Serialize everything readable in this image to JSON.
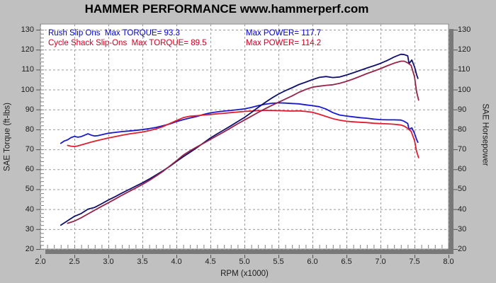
{
  "title": "HAMMER PERFORMANCE www.hammerperf.com",
  "legend": {
    "rows": [
      {
        "series": "Rush Slip Ons",
        "torque_text": "Rush Slip Ons  Max TORQUE= 93.3",
        "power_text": "Max POWER= 117.7",
        "color": "#0000cc"
      },
      {
        "series": "Cycle Shack Slip-Ons",
        "torque_text": "Cycle Shack Slip-Ons  Max TORQUE= 89.5",
        "power_text": "Max POWER= 114.2",
        "color": "#cc0022"
      }
    ]
  },
  "axes": {
    "left_label": "SAE Torque (ft-lbs)",
    "right_label": "SAE Horsepower",
    "bottom_label": "RPM (x1000)"
  },
  "chart_data": {
    "type": "line",
    "title": "HAMMER PERFORMANCE www.hammerperf.com",
    "xlabel": "RPM (x1000)",
    "ylabel": "SAE Torque (ft-lbs)",
    "ylabel_right": "SAE Horsepower",
    "xlim": [
      2.0,
      8.0
    ],
    "ylim": [
      20,
      130
    ],
    "x_ticks": [
      2.0,
      2.5,
      3.0,
      3.5,
      4.0,
      4.5,
      5.0,
      5.5,
      6.0,
      6.5,
      7.0,
      7.5,
      8.0
    ],
    "y_ticks": [
      20,
      30,
      40,
      50,
      60,
      70,
      80,
      90,
      100,
      110,
      120,
      130
    ],
    "x_minor_step": 0.1,
    "y_minor_step": 2,
    "grid": "dashed",
    "grid_color": "#9a9a9a",
    "legend_position": "top-left-inside",
    "series": [
      {
        "name": "Rush Slip Ons Torque (ft-lbs)",
        "max_label": "Max TORQUE= 93.3",
        "max_value": 93.3,
        "color": "#1a1acc",
        "points": [
          [
            2.3,
            73.0
          ],
          [
            2.35,
            74.2
          ],
          [
            2.4,
            74.8
          ],
          [
            2.45,
            75.9
          ],
          [
            2.5,
            76.5
          ],
          [
            2.55,
            76.1
          ],
          [
            2.6,
            76.4
          ],
          [
            2.65,
            77.1
          ],
          [
            2.7,
            77.8
          ],
          [
            2.75,
            77.1
          ],
          [
            2.8,
            76.7
          ],
          [
            2.85,
            76.9
          ],
          [
            2.9,
            77.3
          ],
          [
            2.95,
            77.7
          ],
          [
            3.0,
            78.1
          ],
          [
            3.1,
            78.5
          ],
          [
            3.2,
            78.9
          ],
          [
            3.3,
            79.2
          ],
          [
            3.4,
            79.5
          ],
          [
            3.5,
            79.9
          ],
          [
            3.6,
            80.4
          ],
          [
            3.7,
            81.0
          ],
          [
            3.8,
            81.8
          ],
          [
            3.9,
            82.7
          ],
          [
            4.0,
            83.9
          ],
          [
            4.1,
            84.9
          ],
          [
            4.2,
            85.7
          ],
          [
            4.3,
            86.5
          ],
          [
            4.4,
            87.5
          ],
          [
            4.5,
            88.3
          ],
          [
            4.6,
            88.8
          ],
          [
            4.7,
            89.2
          ],
          [
            4.8,
            89.5
          ],
          [
            4.9,
            89.9
          ],
          [
            5.0,
            90.3
          ],
          [
            5.1,
            91.0
          ],
          [
            5.2,
            91.9
          ],
          [
            5.3,
            92.6
          ],
          [
            5.4,
            93.1
          ],
          [
            5.5,
            93.3
          ],
          [
            5.6,
            93.2
          ],
          [
            5.7,
            93.0
          ],
          [
            5.8,
            92.8
          ],
          [
            5.9,
            92.3
          ],
          [
            6.0,
            91.9
          ],
          [
            6.1,
            91.4
          ],
          [
            6.2,
            90.2
          ],
          [
            6.3,
            88.4
          ],
          [
            6.4,
            87.2
          ],
          [
            6.5,
            86.7
          ],
          [
            6.6,
            86.3
          ],
          [
            6.7,
            85.9
          ],
          [
            6.8,
            85.6
          ],
          [
            6.9,
            85.2
          ],
          [
            7.0,
            84.9
          ],
          [
            7.1,
            84.8
          ],
          [
            7.2,
            84.8
          ],
          [
            7.3,
            84.7
          ],
          [
            7.35,
            84.0
          ],
          [
            7.4,
            83.0
          ],
          [
            7.42,
            80.0
          ],
          [
            7.46,
            80.8
          ],
          [
            7.5,
            78.0
          ],
          [
            7.53,
            75.0
          ],
          [
            7.55,
            73.5
          ]
        ]
      },
      {
        "name": "Cycle Shack Slip-Ons Torque (ft-lbs)",
        "max_label": "Max TORQUE= 89.5",
        "max_value": 89.5,
        "color": "#dd1f30",
        "points": [
          [
            2.4,
            72.0
          ],
          [
            2.45,
            71.6
          ],
          [
            2.5,
            71.4
          ],
          [
            2.55,
            71.7
          ],
          [
            2.6,
            72.2
          ],
          [
            2.7,
            73.2
          ],
          [
            2.8,
            74.1
          ],
          [
            2.9,
            74.9
          ],
          [
            3.0,
            75.7
          ],
          [
            3.1,
            76.4
          ],
          [
            3.2,
            77.1
          ],
          [
            3.3,
            77.7
          ],
          [
            3.4,
            78.2
          ],
          [
            3.5,
            78.7
          ],
          [
            3.6,
            79.4
          ],
          [
            3.7,
            80.3
          ],
          [
            3.8,
            81.4
          ],
          [
            3.9,
            82.9
          ],
          [
            4.0,
            84.4
          ],
          [
            4.1,
            85.9
          ],
          [
            4.2,
            86.6
          ],
          [
            4.3,
            86.9
          ],
          [
            4.4,
            87.2
          ],
          [
            4.5,
            87.5
          ],
          [
            4.6,
            87.8
          ],
          [
            4.7,
            88.1
          ],
          [
            4.8,
            88.4
          ],
          [
            4.9,
            88.7
          ],
          [
            5.0,
            89.0
          ],
          [
            5.1,
            89.2
          ],
          [
            5.2,
            89.4
          ],
          [
            5.3,
            89.5
          ],
          [
            5.4,
            89.5
          ],
          [
            5.5,
            89.4
          ],
          [
            5.6,
            89.3
          ],
          [
            5.7,
            89.2
          ],
          [
            5.8,
            89.3
          ],
          [
            5.9,
            89.0
          ],
          [
            6.0,
            88.6
          ],
          [
            6.1,
            87.6
          ],
          [
            6.2,
            86.5
          ],
          [
            6.3,
            85.4
          ],
          [
            6.4,
            84.6
          ],
          [
            6.5,
            84.1
          ],
          [
            6.6,
            83.8
          ],
          [
            6.7,
            83.6
          ],
          [
            6.8,
            83.4
          ],
          [
            6.9,
            83.1
          ],
          [
            7.0,
            82.9
          ],
          [
            7.1,
            82.8
          ],
          [
            7.2,
            82.6
          ],
          [
            7.3,
            82.2
          ],
          [
            7.35,
            81.6
          ],
          [
            7.4,
            80.5
          ],
          [
            7.45,
            79.0
          ],
          [
            7.5,
            74.5
          ],
          [
            7.53,
            69.0
          ],
          [
            7.56,
            65.8
          ]
        ]
      },
      {
        "name": "Rush Slip Ons Power (hp)",
        "max_label": "Max POWER= 117.7",
        "max_value": 117.7,
        "color": "#10106e",
        "points": [
          [
            2.3,
            32.0
          ],
          [
            2.4,
            34.2
          ],
          [
            2.5,
            36.4
          ],
          [
            2.6,
            37.8
          ],
          [
            2.7,
            40.0
          ],
          [
            2.8,
            40.9
          ],
          [
            2.9,
            42.7
          ],
          [
            3.0,
            44.6
          ],
          [
            3.1,
            46.3
          ],
          [
            3.2,
            48.1
          ],
          [
            3.3,
            49.8
          ],
          [
            3.4,
            51.5
          ],
          [
            3.5,
            53.2
          ],
          [
            3.6,
            55.1
          ],
          [
            3.7,
            57.1
          ],
          [
            3.8,
            59.2
          ],
          [
            3.9,
            61.4
          ],
          [
            4.0,
            63.9
          ],
          [
            4.1,
            66.3
          ],
          [
            4.2,
            68.5
          ],
          [
            4.3,
            70.8
          ],
          [
            4.4,
            73.3
          ],
          [
            4.5,
            75.7
          ],
          [
            4.6,
            77.8
          ],
          [
            4.7,
            79.8
          ],
          [
            4.8,
            81.8
          ],
          [
            4.9,
            83.9
          ],
          [
            5.0,
            86.0
          ],
          [
            5.1,
            88.4
          ],
          [
            5.2,
            91.0
          ],
          [
            5.3,
            93.4
          ],
          [
            5.4,
            95.7
          ],
          [
            5.5,
            97.7
          ],
          [
            5.6,
            99.4
          ],
          [
            5.7,
            100.9
          ],
          [
            5.8,
            102.5
          ],
          [
            5.9,
            103.7
          ],
          [
            6.0,
            105.0
          ],
          [
            6.1,
            106.1
          ],
          [
            6.2,
            106.5
          ],
          [
            6.3,
            106.0
          ],
          [
            6.4,
            106.3
          ],
          [
            6.5,
            107.3
          ],
          [
            6.6,
            108.4
          ],
          [
            6.7,
            109.6
          ],
          [
            6.8,
            110.8
          ],
          [
            6.9,
            111.9
          ],
          [
            7.0,
            113.1
          ],
          [
            7.1,
            114.6
          ],
          [
            7.2,
            116.3
          ],
          [
            7.3,
            117.7
          ],
          [
            7.35,
            117.5
          ],
          [
            7.4,
            116.9
          ],
          [
            7.42,
            113.0
          ],
          [
            7.46,
            114.8
          ],
          [
            7.5,
            111.4
          ],
          [
            7.53,
            107.5
          ],
          [
            7.55,
            105.6
          ]
        ]
      },
      {
        "name": "Cycle Shack Slip-Ons Power (hp)",
        "max_label": "Max POWER= 114.2",
        "max_value": 114.2,
        "color": "#96234a",
        "points": [
          [
            2.4,
            32.9
          ],
          [
            2.5,
            34.0
          ],
          [
            2.6,
            35.7
          ],
          [
            2.7,
            37.6
          ],
          [
            2.8,
            39.5
          ],
          [
            2.9,
            41.4
          ],
          [
            3.0,
            43.2
          ],
          [
            3.1,
            45.1
          ],
          [
            3.2,
            47.0
          ],
          [
            3.3,
            48.8
          ],
          [
            3.4,
            50.6
          ],
          [
            3.5,
            52.4
          ],
          [
            3.6,
            54.4
          ],
          [
            3.7,
            56.6
          ],
          [
            3.8,
            58.9
          ],
          [
            3.9,
            61.6
          ],
          [
            4.0,
            64.3
          ],
          [
            4.1,
            67.1
          ],
          [
            4.2,
            69.3
          ],
          [
            4.3,
            71.2
          ],
          [
            4.4,
            73.1
          ],
          [
            4.5,
            75.0
          ],
          [
            4.6,
            76.9
          ],
          [
            4.7,
            78.8
          ],
          [
            4.8,
            80.8
          ],
          [
            4.9,
            82.8
          ],
          [
            5.0,
            84.7
          ],
          [
            5.1,
            86.6
          ],
          [
            5.2,
            88.5
          ],
          [
            5.3,
            90.3
          ],
          [
            5.4,
            92.0
          ],
          [
            5.5,
            93.6
          ],
          [
            5.6,
            95.2
          ],
          [
            5.7,
            96.8
          ],
          [
            5.8,
            98.6
          ],
          [
            5.9,
            100.0
          ],
          [
            6.0,
            101.2
          ],
          [
            6.1,
            101.7
          ],
          [
            6.2,
            102.1
          ],
          [
            6.3,
            102.4
          ],
          [
            6.4,
            103.1
          ],
          [
            6.5,
            104.1
          ],
          [
            6.6,
            105.3
          ],
          [
            6.7,
            106.6
          ],
          [
            6.8,
            108.0
          ],
          [
            6.9,
            109.2
          ],
          [
            7.0,
            110.5
          ],
          [
            7.1,
            111.9
          ],
          [
            7.2,
            113.2
          ],
          [
            7.3,
            114.2
          ],
          [
            7.35,
            114.2
          ],
          [
            7.4,
            113.4
          ],
          [
            7.45,
            112.1
          ],
          [
            7.5,
            106.4
          ],
          [
            7.53,
            98.9
          ],
          [
            7.56,
            94.7
          ]
        ]
      }
    ]
  }
}
